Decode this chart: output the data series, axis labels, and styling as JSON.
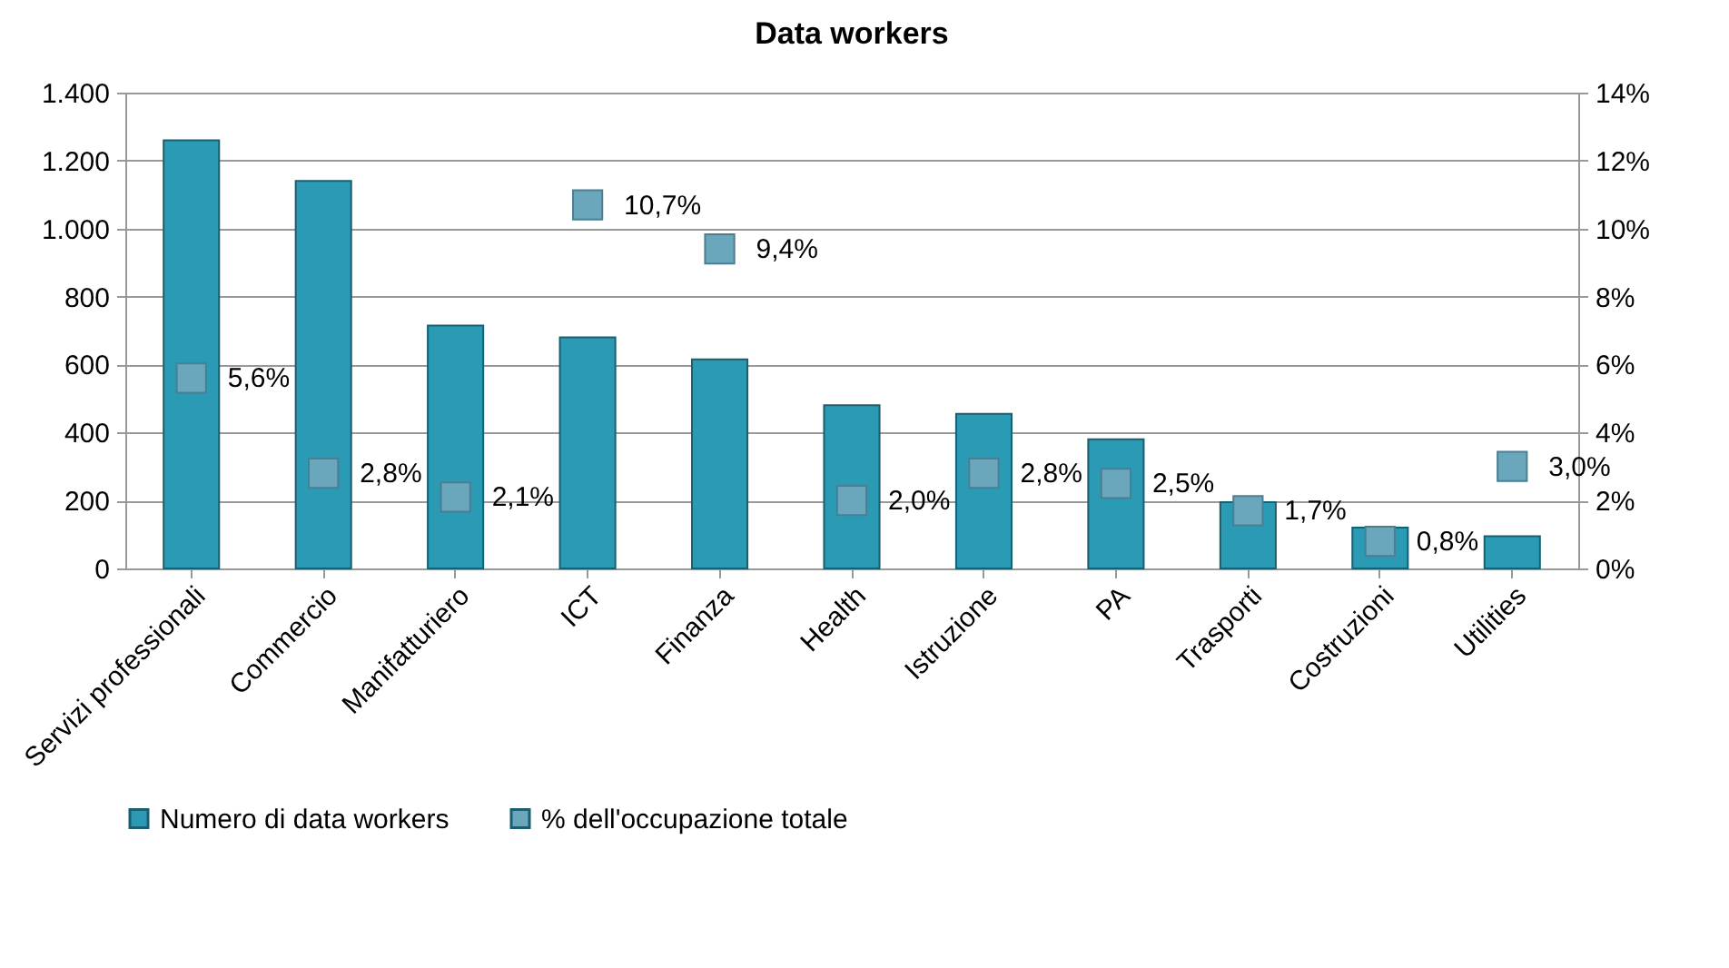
{
  "chart_data": {
    "type": "bar",
    "title": "Data workers",
    "categories": [
      "Servizi professionali",
      "Commercio",
      "Manifatturiero",
      "ICT",
      "Finanza",
      "Health",
      "Istruzione",
      "PA",
      "Trasporti",
      "Costruzioni",
      "Utilities"
    ],
    "series": [
      {
        "name": "Numero di data workers",
        "color": "#2b9ab4",
        "values": [
          1260,
          1140,
          715,
          680,
          615,
          480,
          455,
          380,
          195,
          120,
          95
        ]
      },
      {
        "name": "% dell'occupazione totale",
        "type": "scatter",
        "axis": "y2",
        "color": "#6aa7bd",
        "values": [
          5.6,
          2.8,
          2.1,
          10.7,
          9.4,
          2.0,
          2.8,
          2.5,
          1.7,
          0.8,
          3.0
        ],
        "value_labels": [
          "5,6%",
          "2,8%",
          "2,1%",
          "10,7%",
          "9,4%",
          "2,0%",
          "2,8%",
          "2,5%",
          "1,7%",
          "0,8%",
          "3,0%"
        ]
      }
    ],
    "ylim": [
      0,
      1400
    ],
    "yticks": [
      0,
      200,
      400,
      600,
      800,
      {
        "value": 1000,
        "label": "1.000"
      },
      {
        "value": 1200,
        "label": "1.200"
      },
      {
        "value": 1400,
        "label": "1.400"
      }
    ],
    "y2lim": [
      0,
      14
    ],
    "y2ticks": [
      {
        "value": 0,
        "label": "0%"
      },
      {
        "value": 2,
        "label": "2%"
      },
      {
        "value": 4,
        "label": "4%"
      },
      {
        "value": 6,
        "label": "6%"
      },
      {
        "value": 8,
        "label": "8%"
      },
      {
        "value": 10,
        "label": "10%"
      },
      {
        "value": 12,
        "label": "12%"
      },
      {
        "value": 14,
        "label": "14%"
      }
    ],
    "grid": "y",
    "legend": "bottom",
    "marker": "square"
  }
}
